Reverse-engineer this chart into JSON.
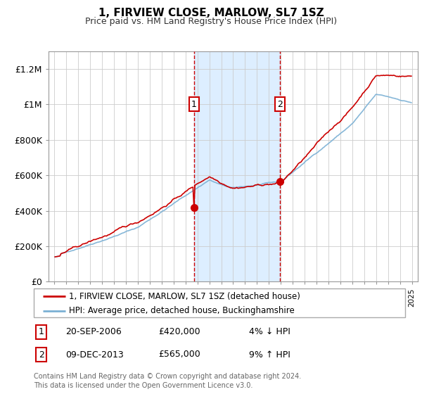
{
  "title": "1, FIRVIEW CLOSE, MARLOW, SL7 1SZ",
  "subtitle": "Price paid vs. HM Land Registry's House Price Index (HPI)",
  "legend_line1": "1, FIRVIEW CLOSE, MARLOW, SL7 1SZ (detached house)",
  "legend_line2": "HPI: Average price, detached house, Buckinghamshire",
  "footnote": "Contains HM Land Registry data © Crown copyright and database right 2024.\nThis data is licensed under the Open Government Licence v3.0.",
  "transaction1_label": "1",
  "transaction1_date": "20-SEP-2006",
  "transaction1_price": "£420,000",
  "transaction1_hpi": "4% ↓ HPI",
  "transaction2_label": "2",
  "transaction2_date": "09-DEC-2013",
  "transaction2_price": "£565,000",
  "transaction2_hpi": "9% ↑ HPI",
  "sale1_year": 2006.72,
  "sale1_price": 420000,
  "sale2_year": 2013.93,
  "sale2_price": 565000,
  "price_line_color": "#cc0000",
  "hpi_line_color": "#7ab0d4",
  "shaded_region_color": "#ddeeff",
  "dashed_line_color": "#cc0000",
  "ylim_min": 0,
  "ylim_max": 1300000,
  "ytick_values": [
    0,
    200000,
    400000,
    600000,
    800000,
    1000000,
    1200000
  ],
  "ytick_labels": [
    "£0",
    "£200K",
    "£400K",
    "£600K",
    "£800K",
    "£1M",
    "£1.2M"
  ],
  "xmin": 1994.5,
  "xmax": 2025.5
}
